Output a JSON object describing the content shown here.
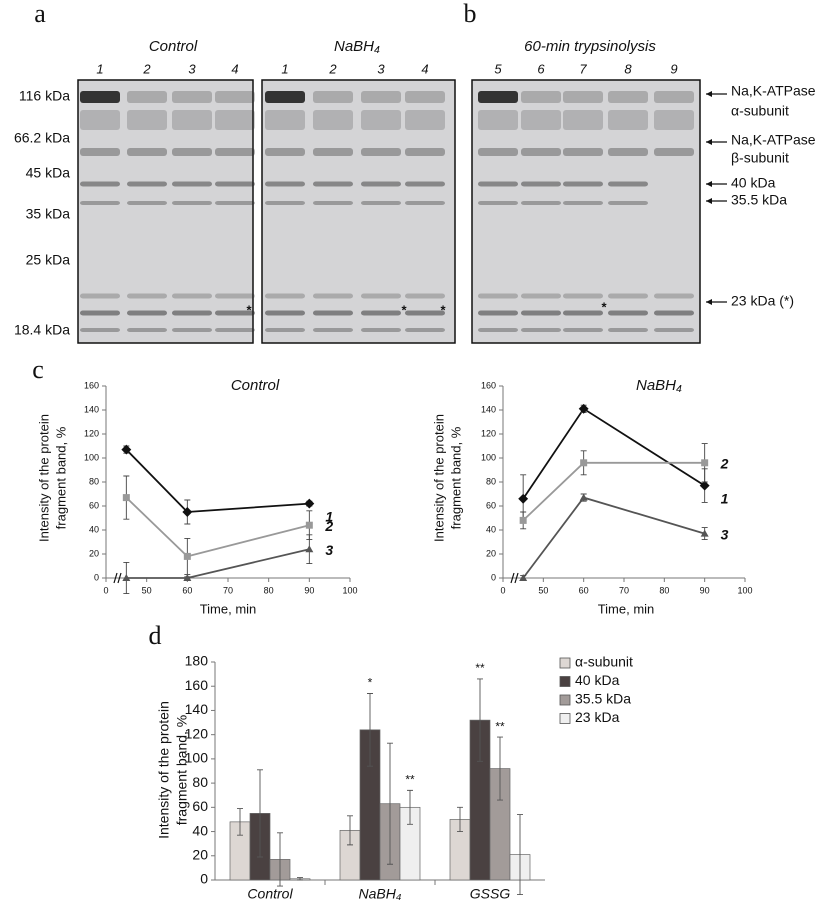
{
  "panel_labels": [
    "a",
    "b",
    "c",
    "d"
  ],
  "gels": {
    "groups": [
      "Control",
      "NaBH₄",
      "60-min trypsinolysis"
    ],
    "lanes": [
      [
        "1",
        "2",
        "3",
        "4"
      ],
      [
        "1",
        "2",
        "3",
        "4"
      ],
      [
        "5",
        "6",
        "7",
        "8",
        "9"
      ]
    ],
    "markers": [
      "116 kDa",
      "66.2 kDa",
      "45 kDa",
      "35 kDa",
      "25 kDa",
      "18.4 kDa"
    ],
    "bands": [
      [
        "Na,K-ATPase",
        "α-subunit"
      ],
      [
        "Na,K-ATPase",
        "β-subunit"
      ],
      [
        "40 kDa"
      ],
      [
        "35.5 kDa"
      ],
      [
        "23 kDa (*)"
      ]
    ],
    "asterisk": "*"
  },
  "chart_data": [
    {
      "type": "line",
      "title": "Control",
      "x_label": "Time, min",
      "y_label": [
        "Intensity of the protein",
        "fragment band, %"
      ],
      "x": [
        45,
        60,
        90
      ],
      "xlim": [
        40,
        100
      ],
      "xticks": [
        {
          "value": 40,
          "label": "0"
        },
        50,
        60,
        70,
        80,
        90,
        100
      ],
      "ylim": [
        0,
        160
      ],
      "yticks": [
        0,
        20,
        40,
        60,
        80,
        100,
        120,
        140,
        160
      ],
      "series": [
        {
          "name": "1",
          "color": "#111111",
          "values": [
            107,
            55,
            62
          ],
          "errors": [
            3,
            10,
            2
          ]
        },
        {
          "name": "2",
          "color": "#999999",
          "values": [
            67,
            18,
            44
          ],
          "errors": [
            18,
            15,
            12
          ]
        },
        {
          "name": "3",
          "color": "#555555",
          "values": [
            0,
            0,
            24
          ],
          "errors": [
            13,
            1,
            12
          ]
        }
      ]
    },
    {
      "type": "line",
      "title": "NaBH₄",
      "x_label": "Time, min",
      "y_label": [
        "Intensity of the protein",
        "fragment band, %"
      ],
      "x": [
        45,
        60,
        90
      ],
      "xlim": [
        40,
        100
      ],
      "xticks": [
        {
          "value": 40,
          "label": "0"
        },
        50,
        60,
        70,
        80,
        90,
        100
      ],
      "ylim": [
        0,
        160
      ],
      "yticks": [
        0,
        20,
        40,
        60,
        80,
        100,
        120,
        140,
        160
      ],
      "series": [
        {
          "name": "1",
          "color": "#111111",
          "values": [
            66,
            141,
            77
          ],
          "errors": [
            20,
            3,
            14
          ]
        },
        {
          "name": "2",
          "color": "#999999",
          "values": [
            48,
            96,
            96
          ],
          "errors": [
            7,
            10,
            16
          ]
        },
        {
          "name": "3",
          "color": "#555555",
          "values": [
            0,
            67,
            37
          ],
          "errors": [
            2,
            3,
            5
          ]
        }
      ]
    },
    {
      "type": "bar",
      "y_label": [
        "Intensity of the protein",
        "fragment band, %"
      ],
      "categories": [
        "Control",
        "NaBH₄",
        "GSSG"
      ],
      "ylim": [
        0,
        180
      ],
      "yticks": [
        0,
        20,
        40,
        60,
        80,
        100,
        120,
        140,
        160,
        180
      ],
      "legend": "right",
      "series": [
        {
          "name": "α-subunit",
          "color": "#ddd7d3",
          "values": [
            48,
            41,
            50
          ],
          "errors": [
            11,
            12,
            10
          ],
          "significance": [
            null,
            null,
            null
          ]
        },
        {
          "name": "40 kDa",
          "color": "#4a4141",
          "values": [
            55,
            124,
            132
          ],
          "errors": [
            36,
            30,
            34
          ],
          "significance": [
            null,
            "*",
            "**"
          ]
        },
        {
          "name": "35.5 kDa",
          "color": "#a29b99",
          "values": [
            17,
            63,
            92
          ],
          "errors": [
            22,
            50,
            26
          ],
          "significance": [
            null,
            null,
            "**"
          ]
        },
        {
          "name": "23 kDa",
          "color": "#efefef",
          "values": [
            1,
            60,
            21
          ],
          "errors": [
            1,
            14,
            33
          ],
          "significance": [
            null,
            "**",
            null
          ]
        }
      ]
    }
  ]
}
